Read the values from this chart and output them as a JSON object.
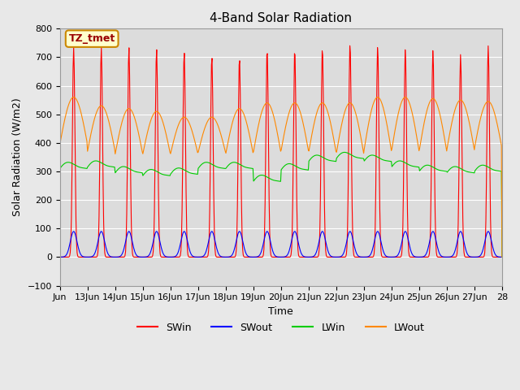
{
  "title": "4-Band Solar Radiation",
  "xlabel": "Time",
  "ylabel": "Solar Radiation (W/m2)",
  "ylim": [
    -100,
    800
  ],
  "background_color": "#e8e8e8",
  "plot_bg_color": "#dcdcdc",
  "annotation_text": "TZ_tmet",
  "annotation_bg": "#ffffcc",
  "annotation_border": "#cc8800",
  "annotation_text_color": "#990000",
  "xtick_positions": [
    0,
    1,
    2,
    3,
    4,
    5,
    6,
    7,
    8,
    9,
    10,
    11,
    12,
    13,
    14,
    15,
    16
  ],
  "xtick_labels": [
    "Jun",
    "13Jun",
    "14Jun",
    "15Jun",
    "16Jun",
    "17Jun",
    "18Jun",
    "19Jun",
    "20Jun",
    "21Jun",
    "22Jun",
    "23Jun",
    "24Jun",
    "25Jun",
    "26Jun",
    "27Jun",
    "28"
  ],
  "legend_entries": [
    "SWin",
    "SWout",
    "LWin",
    "LWout"
  ],
  "legend_colors": [
    "#ff0000",
    "#0000ff",
    "#00cc00",
    "#ff8800"
  ],
  "line_colors": {
    "SWin": "#ff0000",
    "SWout": "#0000ff",
    "LWin": "#00cc00",
    "LWout": "#ff8800"
  },
  "n_days": 16,
  "points_per_day": 48,
  "SWin_peak_vals": [
    735,
    735,
    735,
    730,
    720,
    705,
    700,
    730,
    730,
    735,
    750,
    740,
    730,
    725,
    710,
    740
  ],
  "LWin_base_vals": [
    305,
    310,
    290,
    280,
    285,
    305,
    305,
    260,
    300,
    330,
    340,
    330,
    310,
    295,
    290,
    295
  ],
  "LWout_peak_vals": [
    560,
    530,
    520,
    510,
    490,
    490,
    520,
    540,
    540,
    540,
    540,
    560,
    560,
    555,
    550,
    545
  ],
  "LWout_base_vals": [
    395,
    370,
    360,
    360,
    360,
    365,
    360,
    365,
    370,
    365,
    360,
    370,
    370,
    370,
    375,
    380
  ]
}
